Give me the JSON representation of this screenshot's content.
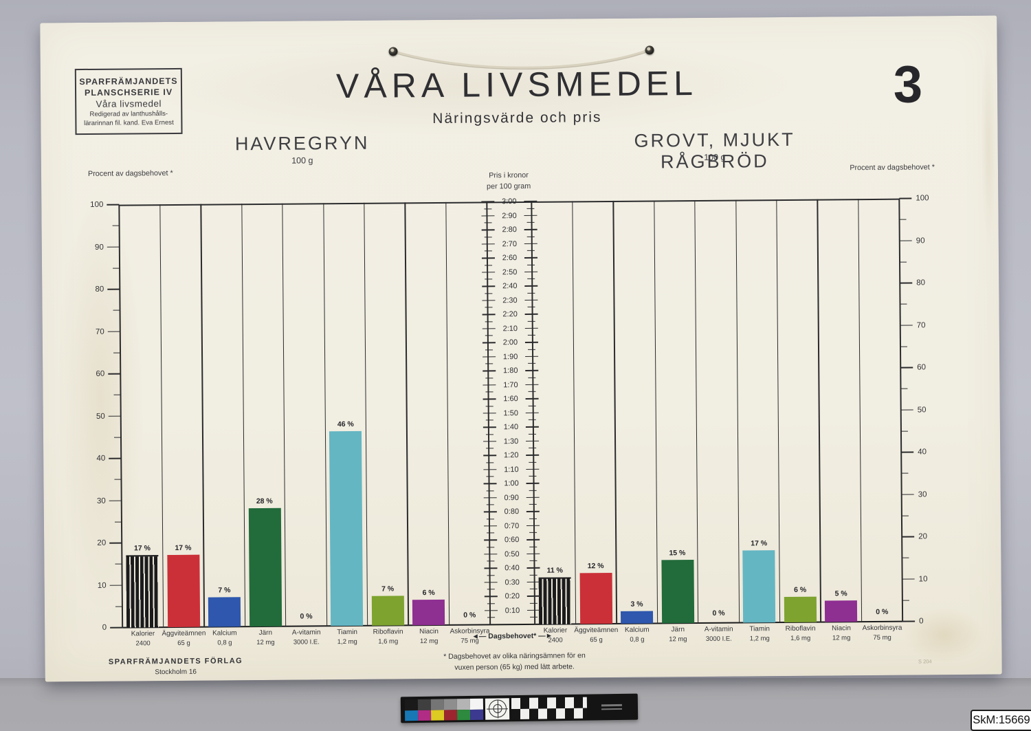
{
  "scene": {
    "museum_tag": "SkM:15669"
  },
  "poster": {
    "stamp_lines": [
      "SPARFRÄMJANDETS",
      "PLANSCHSERIE IV",
      "Våra livsmedel",
      "Redigerad av lanthushålls-",
      "lärarinnan fil. kand. Eva Ernest"
    ],
    "title": "VÅRA LIVSMEDEL",
    "subtitle": "Näringsvärde och pris",
    "plate_number": "3",
    "publisher_name": "SPARFRÄMJANDETS FÖRLAG",
    "publisher_city": "Stockholm 16",
    "footnote_line1": "* Dagsbehovet av olika näringsämnen för en",
    "footnote_line2": "vuxen person (65 kg) med lätt arbete.",
    "daily_need_label": "◄— Dagsbehovet* —►",
    "print_code": "S 204"
  },
  "chart_data": {
    "type": "bar",
    "layout": "two mirrored percent-of-daily-need panels with shared central price scale, grid on",
    "ylabel_left": "Procent av dagsbehovet *",
    "ylabel_right": "Procent av dagsbehovet *",
    "ylim": [
      0,
      100
    ],
    "ytick_labels": [
      "100",
      "90",
      "80",
      "70",
      "60",
      "50",
      "40",
      "30",
      "20",
      "10",
      "0"
    ],
    "categories": [
      "Kalorier",
      "Äggviteämnen",
      "Kalcium",
      "Järn",
      "A-vitamin",
      "Tiamin",
      "Riboflavin",
      "Niacin",
      "Askorbinsyra"
    ],
    "category_amounts": [
      "2400",
      "65 g",
      "0,8 g",
      "12 mg",
      "3000 I.E.",
      "1,2 mg",
      "1,6 mg",
      "12 mg",
      "75 mg"
    ],
    "bar_colors": [
      "black-hatched",
      "#cb3038",
      "#2e57ad",
      "#226b3b",
      null,
      "#64b6c3",
      "#7ea32f",
      "#8e2f92",
      null
    ],
    "series": [
      {
        "name": "HAVREGRYN",
        "subtitle": "100 g",
        "values": [
          17,
          17,
          7,
          28,
          0,
          46,
          7,
          6,
          0
        ]
      },
      {
        "name": "GROVT, MJUKT RÅGBRÖD",
        "subtitle": "100 g",
        "values": [
          11,
          12,
          3,
          15,
          0,
          17,
          6,
          5,
          0
        ]
      }
    ],
    "value_suffix": " %",
    "center_axis": {
      "title_line1": "Pris i kronor",
      "title_line2": "per 100 gram",
      "tick_labels": [
        "3:00",
        "2:90",
        "2:80",
        "2:70",
        "2:60",
        "2:50",
        "2:40",
        "2:30",
        "2:20",
        "2:10",
        "2:00",
        "1:90",
        "1:80",
        "1:70",
        "1:60",
        "1:50",
        "1:40",
        "1:30",
        "1:20",
        "1:10",
        "1:00",
        "0:90",
        "0:80",
        "0:70",
        "0:60",
        "0:50",
        "0:40",
        "0:30",
        "0:20",
        "0:10"
      ]
    }
  },
  "color_ruler": {
    "gray_swatches": [
      "#1a1a1a",
      "#3f3f3f",
      "#757575",
      "#8e8e8e",
      "#b4b4b4",
      "#f4f4f4"
    ],
    "color_swatches": [
      "#1878b6",
      "#b02c85",
      "#ddca22",
      "#9c2530",
      "#2d8a3e",
      "#3c3a90"
    ]
  }
}
